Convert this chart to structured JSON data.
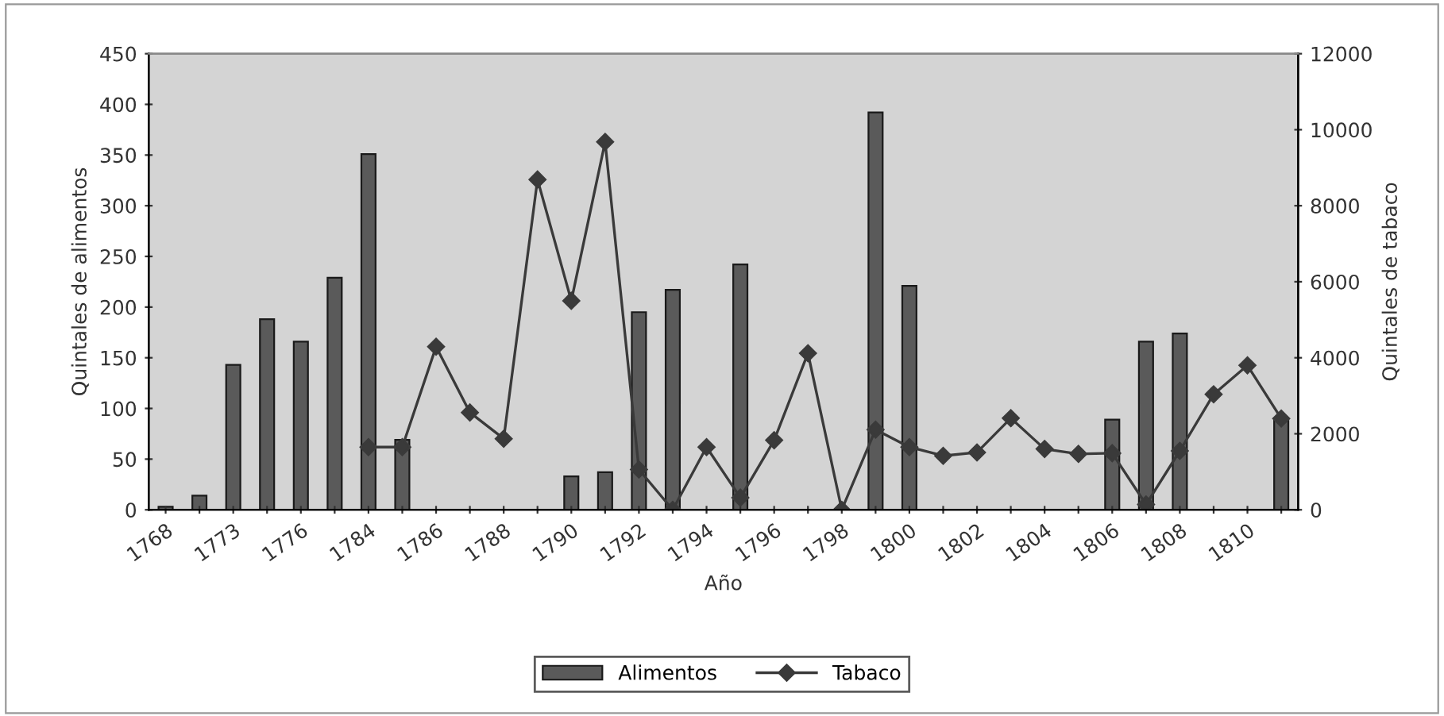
{
  "chart_data": {
    "type": "bar",
    "categories": [
      "1768",
      null,
      "1773",
      null,
      "1776",
      null,
      "1784",
      null,
      "1786",
      null,
      "1788",
      null,
      "1790",
      null,
      "1792",
      null,
      "1794",
      null,
      "1796",
      null,
      "1798",
      null,
      "1800",
      null,
      "1802",
      null,
      "1804",
      null,
      "1806",
      null,
      "1808",
      null,
      "1810",
      null
    ],
    "series": [
      {
        "name": "Alimentos",
        "color": "#5a5a5a",
        "values": [
          3,
          14,
          143,
          188,
          166,
          229,
          351,
          69,
          null,
          null,
          null,
          null,
          33,
          37,
          195,
          217,
          null,
          242,
          null,
          null,
          null,
          392,
          221,
          null,
          null,
          null,
          null,
          null,
          89,
          166,
          174,
          null,
          null,
          89
        ]
      },
      {
        "name": "Tabaco",
        "type": "line",
        "axis": "y2",
        "color": "#3a3a3a",
        "marker": "diamond",
        "values": [
          null,
          null,
          null,
          null,
          null,
          null,
          1650,
          1650,
          4290,
          2560,
          1870,
          8690,
          5500,
          9680,
          1060,
          0,
          1650,
          320,
          1830,
          4120,
          0,
          2110,
          1650,
          1420,
          1510,
          2410,
          1600,
          1470,
          1490,
          140,
          1550,
          3040,
          3800,
          2400
        ]
      }
    ],
    "xlabel": "Año",
    "ylabel": "Quintales de alimentos",
    "y2label": "Quintales de tabaco",
    "ylim": [
      0,
      450
    ],
    "yticks": [
      0,
      50,
      100,
      150,
      200,
      250,
      300,
      350,
      400,
      450
    ],
    "y2lim": [
      0,
      12000
    ],
    "y2ticks": [
      0,
      2000,
      4000,
      6000,
      8000,
      10000,
      12000
    ],
    "legend": "bottom",
    "grid": false
  }
}
